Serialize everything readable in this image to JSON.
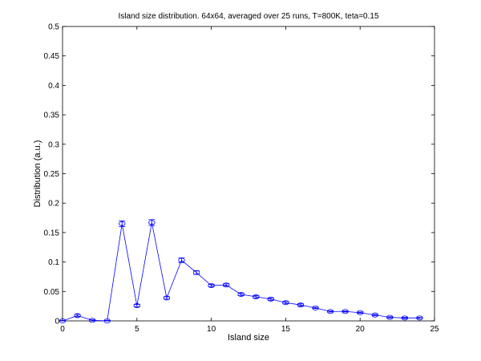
{
  "chart_data": {
    "type": "line",
    "title": "Island size distribution. 64x64, averaged over 25 runs, T=800K, teta=0.15",
    "xlabel": "Island size",
    "ylabel": "Distribution (a.u.)",
    "xlim": [
      0,
      25
    ],
    "ylim": [
      0,
      0.5
    ],
    "xticks": [
      0,
      5,
      10,
      15,
      20,
      25
    ],
    "yticks": [
      0,
      0.05,
      0.1,
      0.15,
      0.2,
      0.25,
      0.3,
      0.35,
      0.4,
      0.45,
      0.5
    ],
    "xtick_labels": [
      "0",
      "5",
      "10",
      "15",
      "20",
      "25"
    ],
    "ytick_labels": [
      "0",
      "0.05",
      "0.1",
      "0.15",
      "0.2",
      "0.25",
      "0.3",
      "0.35",
      "0.4",
      "0.45",
      "0.5"
    ],
    "grid": false,
    "series": [
      {
        "color": "#0000ff",
        "marker": "circle",
        "x": [
          0,
          1,
          2,
          3,
          4,
          5,
          6,
          7,
          8,
          9,
          10,
          11,
          12,
          13,
          14,
          15,
          16,
          17,
          18,
          19,
          20,
          21,
          22,
          23,
          24
        ],
        "y": [
          0.0,
          0.009,
          0.001,
          0.0,
          0.165,
          0.026,
          0.167,
          0.039,
          0.103,
          0.082,
          0.06,
          0.061,
          0.045,
          0.041,
          0.037,
          0.031,
          0.027,
          0.022,
          0.016,
          0.016,
          0.014,
          0.01,
          0.006,
          0.005,
          0.005
        ],
        "error": [
          0.001,
          0.002,
          0.001,
          0.001,
          0.005,
          0.002,
          0.005,
          0.002,
          0.004,
          0.003,
          0.002,
          0.002,
          0.002,
          0.002,
          0.002,
          0.002,
          0.002,
          0.001,
          0.001,
          0.001,
          0.001,
          0.001,
          0.001,
          0.001,
          0.001
        ]
      }
    ]
  }
}
